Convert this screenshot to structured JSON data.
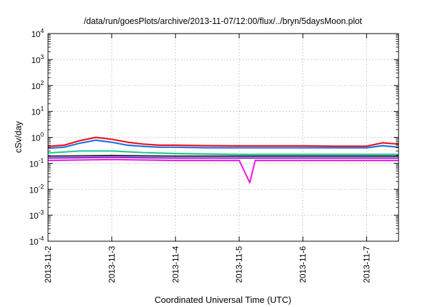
{
  "chart_data": {
    "type": "line",
    "title": "/data/run/goesPlots/archive/2013-11-07/12:00/flux/../bryn/5daysMoon.plot",
    "xlabel": "Coordinated Universal Time (UTC)",
    "ylabel": "cSv/day",
    "y_scale": "log",
    "ylim": [
      0.0001,
      10000
    ],
    "xlim": [
      "2013-11-02T00:00",
      "2013-11-07T12:00"
    ],
    "grid": true,
    "x_ticks": [
      "2013-11-2",
      "2013-11-3",
      "2013-11-4",
      "2013-11-5",
      "2013-11-6",
      "2013-11-7"
    ],
    "y_ticks": [
      {
        "base": "10",
        "exp": "-4",
        "value": 0.0001
      },
      {
        "base": "10",
        "exp": "-3",
        "value": 0.001
      },
      {
        "base": "10",
        "exp": "-2",
        "value": 0.01
      },
      {
        "base": "10",
        "exp": "-1",
        "value": 0.1
      },
      {
        "base": "10",
        "exp": "0",
        "value": 1
      },
      {
        "base": "10",
        "exp": "1",
        "value": 10
      },
      {
        "base": "10",
        "exp": "2",
        "value": 100
      },
      {
        "base": "10",
        "exp": "3",
        "value": 1000
      },
      {
        "base": "10",
        "exp": "4",
        "value": 10000
      }
    ],
    "series": [
      {
        "color": "#e8121c",
        "x": [
          "2013-11-02T00:00",
          "2013-11-02T06:00",
          "2013-11-02T12:00",
          "2013-11-02T18:00",
          "2013-11-03T00:00",
          "2013-11-03T06:00",
          "2013-11-03T12:00",
          "2013-11-03T18:00",
          "2013-11-04T00:00",
          "2013-11-04T12:00",
          "2013-11-05T00:00",
          "2013-11-05T12:00",
          "2013-11-06T00:00",
          "2013-11-06T12:00",
          "2013-11-07T00:00",
          "2013-11-07T06:00",
          "2013-11-07T12:00"
        ],
        "y": [
          0.45,
          0.5,
          0.75,
          1.0,
          0.85,
          0.65,
          0.55,
          0.5,
          0.5,
          0.48,
          0.47,
          0.47,
          0.47,
          0.46,
          0.46,
          0.62,
          0.55
        ]
      },
      {
        "color": "#1f6fe0",
        "x": [
          "2013-11-02T00:00",
          "2013-11-02T06:00",
          "2013-11-02T12:00",
          "2013-11-02T18:00",
          "2013-11-03T00:00",
          "2013-11-03T06:00",
          "2013-11-03T12:00",
          "2013-11-03T18:00",
          "2013-11-04T00:00",
          "2013-11-04T12:00",
          "2013-11-05T00:00",
          "2013-11-05T12:00",
          "2013-11-06T00:00",
          "2013-11-06T12:00",
          "2013-11-07T00:00",
          "2013-11-07T06:00",
          "2013-11-07T12:00"
        ],
        "y": [
          0.38,
          0.42,
          0.6,
          0.78,
          0.65,
          0.5,
          0.45,
          0.42,
          0.42,
          0.4,
          0.4,
          0.4,
          0.4,
          0.4,
          0.4,
          0.48,
          0.42
        ]
      },
      {
        "color": "#1fc89a",
        "x": [
          "2013-11-02T00:00",
          "2013-11-02T12:00",
          "2013-11-03T00:00",
          "2013-11-03T12:00",
          "2013-11-04T00:00",
          "2013-11-05T00:00",
          "2013-11-06T00:00",
          "2013-11-07T00:00",
          "2013-11-07T12:00"
        ],
        "y": [
          0.25,
          0.3,
          0.3,
          0.26,
          0.24,
          0.22,
          0.22,
          0.22,
          0.22
        ]
      },
      {
        "color": "#333333",
        "x": [
          "2013-11-02T00:00",
          "2013-11-03T00:00",
          "2013-11-04T00:00",
          "2013-11-05T00:00",
          "2013-11-06T00:00",
          "2013-11-07T00:00",
          "2013-11-07T12:00"
        ],
        "y": [
          0.19,
          0.2,
          0.19,
          0.19,
          0.19,
          0.19,
          0.19
        ]
      },
      {
        "color": "#8a2be2",
        "x": [
          "2013-11-02T00:00",
          "2013-11-03T00:00",
          "2013-11-04T00:00",
          "2013-11-05T00:00",
          "2013-11-06T00:00",
          "2013-11-07T00:00",
          "2013-11-07T12:00"
        ],
        "y": [
          0.16,
          0.17,
          0.16,
          0.16,
          0.16,
          0.16,
          0.16
        ]
      },
      {
        "color": "#f01ee8",
        "x": [
          "2013-11-02T00:00",
          "2013-11-03T00:00",
          "2013-11-04T00:00",
          "2013-11-05T00:00",
          "2013-11-05T04:00",
          "2013-11-05T06:00",
          "2013-11-06T00:00",
          "2013-11-07T00:00",
          "2013-11-07T12:00"
        ],
        "y": [
          0.13,
          0.14,
          0.13,
          0.13,
          0.018,
          0.13,
          0.13,
          0.13,
          0.13
        ]
      }
    ]
  }
}
